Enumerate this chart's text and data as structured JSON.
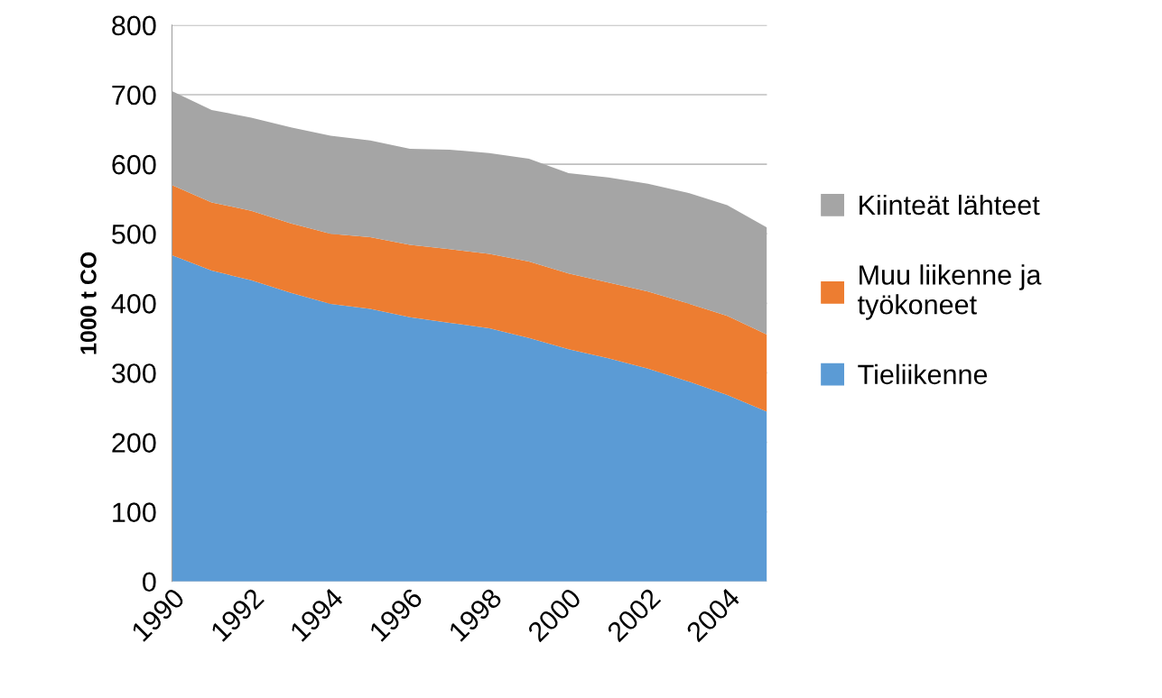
{
  "chart_data": {
    "type": "area",
    "stacked": true,
    "ylabel": "1000 t CO",
    "categories": [
      "1990",
      null,
      "1992",
      null,
      "1994",
      null,
      "1996",
      null,
      "1998",
      null,
      "2000",
      null,
      "2002",
      null,
      "2004",
      null
    ],
    "series": [
      {
        "name": "Tieliikenne",
        "color": "#5b9bd5",
        "values": [
          469,
          447,
          433,
          415,
          399,
          392,
          380,
          372,
          364,
          350,
          334,
          321,
          306,
          288,
          268,
          244
        ]
      },
      {
        "name": "Muu liikenne ja\ntyökoneet",
        "color": "#ed7d31",
        "values": [
          101,
          98,
          100,
          100,
          101,
          103,
          104,
          106,
          107,
          110,
          109,
          109,
          111,
          112,
          114,
          111
        ]
      },
      {
        "name": "Kiinteät lähteet",
        "color": "#a5a5a5",
        "values": [
          135,
          133,
          134,
          138,
          141,
          139,
          138,
          143,
          145,
          148,
          144,
          151,
          155,
          159,
          159,
          154
        ]
      }
    ],
    "ylim": [
      0,
      800
    ],
    "yticks": [
      0,
      100,
      200,
      300,
      400,
      500,
      600,
      700,
      800
    ],
    "grid": "y",
    "legend": "right"
  }
}
